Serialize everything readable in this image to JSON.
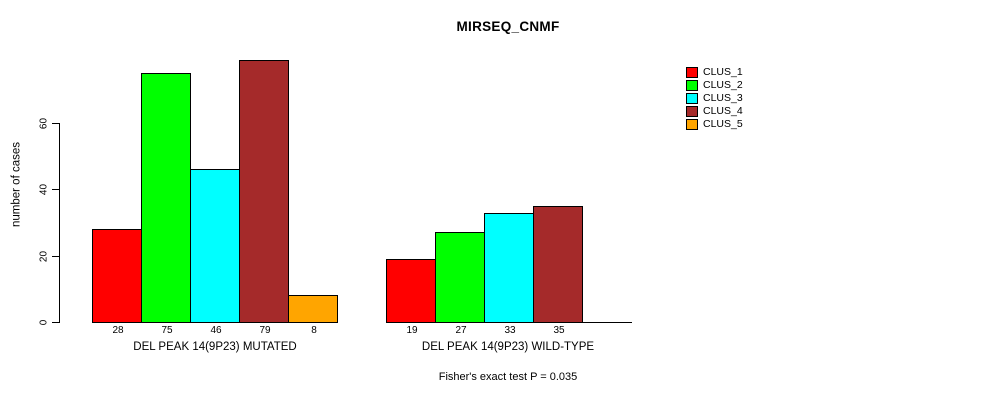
{
  "chart_data": {
    "type": "bar",
    "title": "MIRSEQ_CNMF",
    "ylabel": "number of cases",
    "ylim": [
      0,
      80
    ],
    "yticks": [
      0,
      20,
      40,
      60
    ],
    "grid": false,
    "legend_position": "right",
    "categories": [
      "DEL PEAK 14(9P23) MUTATED",
      "DEL PEAK 14(9P23) WILD-TYPE"
    ],
    "series": [
      {
        "name": "CLUS_1",
        "color": "#ff0000",
        "values": [
          28,
          19
        ]
      },
      {
        "name": "CLUS_2",
        "color": "#00ff00",
        "values": [
          75,
          27
        ]
      },
      {
        "name": "CLUS_3",
        "color": "#00ffff",
        "values": [
          46,
          33
        ]
      },
      {
        "name": "CLUS_4",
        "color": "#a52a2a",
        "values": [
          79,
          35
        ]
      },
      {
        "name": "CLUS_5",
        "color": "#ffa500",
        "values": [
          8,
          0
        ]
      }
    ],
    "bar_value_labels": [
      [
        28,
        75,
        46,
        79,
        8
      ],
      [
        19,
        27,
        33,
        35,
        null
      ]
    ],
    "footnote": "Fisher's exact test P = 0.035"
  }
}
